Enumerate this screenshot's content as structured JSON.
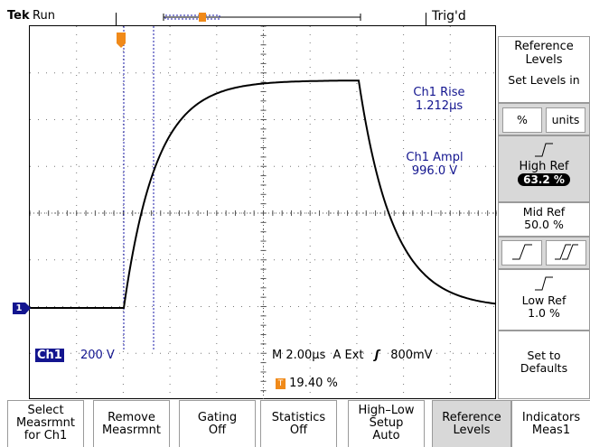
{
  "status": {
    "brand": "Tek",
    "state": "Run",
    "trigger_status": "Trig'd"
  },
  "plot": {
    "measurements": [
      {
        "label": "Ch1 Rise",
        "value": "1.212µs"
      },
      {
        "label": "Ch1 Ampl",
        "value": "996.0 V"
      }
    ],
    "channel_badge": "Ch1",
    "channel_scale": "200 V",
    "timebase": "M 2.00µs",
    "trigger_source": "A  Ext",
    "trigger_level": "800mV",
    "trigger_position": "19.40 %",
    "ch1_marker": "1",
    "trigger_marker": "T"
  },
  "right_menu": {
    "title": "Reference Levels",
    "set_levels_label": "Set Levels in",
    "unit_percent": "%",
    "unit_units": "units",
    "high_ref_label": "High Ref",
    "high_ref_value": "63.2 %",
    "mid_ref_label": "Mid Ref",
    "mid_ref_value": "50.0 %",
    "low_ref_label": "Low Ref",
    "low_ref_value": "1.0 %",
    "defaults_label": "Set to Defaults"
  },
  "bottom_menu": [
    {
      "l1": "Select",
      "l2": "Measrmnt",
      "l3": "for Ch1"
    },
    {
      "l1": "Remove",
      "l2": "Measrmnt",
      "l3": ""
    },
    {
      "l1": "Gating",
      "l2": "Off",
      "l3": ""
    },
    {
      "l1": "Statistics",
      "l2": "Off",
      "l3": ""
    },
    {
      "l1": "High–Low",
      "l2": "Setup",
      "l3": "Auto"
    },
    {
      "l1": "Reference",
      "l2": "Levels",
      "l3": ""
    },
    {
      "l1": "Indicators",
      "l2": "Meas1",
      "l3": ""
    }
  ],
  "colors": {
    "cursor": "#1a1aa8",
    "marker_orange": "#f08a1a",
    "selected_bg": "#d8d8d8"
  }
}
